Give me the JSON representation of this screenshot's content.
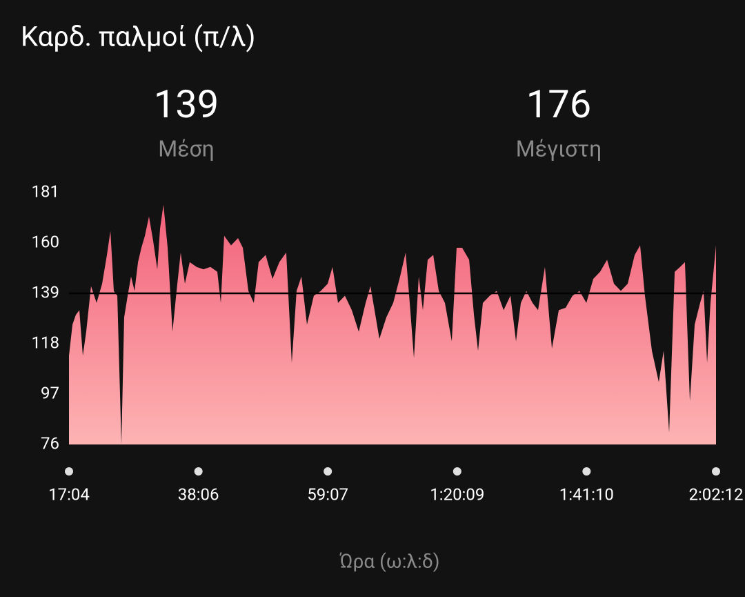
{
  "chart_data": {
    "type": "area",
    "title": "Καρδ. παλμοί (π/λ)",
    "stats": [
      {
        "value": 139,
        "label": "Μέση"
      },
      {
        "value": 176,
        "label": "Μέγιστη"
      }
    ],
    "average_line": 139,
    "x_label": "Ώρα (ω:λ:δ)",
    "color_top": "#f2617a",
    "color_bottom": "#fdb3b3",
    "xlim": [
      1024,
      7332
    ],
    "ylim": [
      76,
      181
    ],
    "yticks": [
      76,
      97,
      118,
      139,
      160,
      181
    ],
    "xticks": [
      {
        "value": 1024,
        "label": "17:04"
      },
      {
        "value": 2286,
        "label": "38:06"
      },
      {
        "value": 3547,
        "label": "59:07"
      },
      {
        "value": 4809,
        "label": "1:20:09"
      },
      {
        "value": 6070,
        "label": "1:41:10"
      },
      {
        "value": 7332,
        "label": "2:02:12"
      }
    ],
    "x": [
      1024,
      1058,
      1091,
      1125,
      1159,
      1192,
      1239,
      1293,
      1347,
      1394,
      1428,
      1461,
      1495,
      1535,
      1562,
      1596,
      1629,
      1663,
      1697,
      1730,
      1764,
      1804,
      1844,
      1885,
      1912,
      1945,
      1986,
      2033,
      2073,
      2113,
      2154,
      2201,
      2268,
      2335,
      2403,
      2470,
      2504,
      2537,
      2604,
      2672,
      2719,
      2773,
      2826,
      2873,
      2941,
      3008,
      3075,
      3142,
      3196,
      3243,
      3290,
      3344,
      3411,
      3479,
      3546,
      3593,
      3647,
      3714,
      3781,
      3849,
      3916,
      3963,
      4003,
      4050,
      4118,
      4185,
      4252,
      4306,
      4346,
      4387,
      4434,
      4474,
      4521,
      4575,
      4629,
      4689,
      4756,
      4803,
      4857,
      4925,
      4972,
      5012,
      5059,
      5126,
      5194,
      5261,
      5328,
      5382,
      5429,
      5483,
      5543,
      5597,
      5664,
      5732,
      5799,
      5866,
      5933,
      6001,
      6068,
      6135,
      6202,
      6270,
      6337,
      6404,
      6471,
      6539,
      6592,
      6639,
      6707,
      6774,
      6821,
      6875,
      6929,
      6982,
      7029,
      7077,
      7124,
      7177,
      7211,
      7245,
      7278,
      7332
    ],
    "values": [
      113,
      126,
      130,
      132,
      113,
      123,
      142,
      135,
      143,
      155,
      165,
      140,
      138,
      76,
      129,
      138,
      146,
      140,
      152,
      158,
      163,
      171,
      161,
      149,
      166,
      176,
      158,
      123,
      140,
      156,
      143,
      152,
      150,
      149,
      150,
      148,
      135,
      163,
      159,
      162,
      158,
      140,
      135,
      152,
      155,
      145,
      152,
      156,
      110,
      140,
      146,
      126,
      138,
      140,
      143,
      150,
      135,
      138,
      132,
      123,
      135,
      142,
      132,
      120,
      129,
      135,
      146,
      156,
      135,
      112,
      146,
      132,
      153,
      155,
      140,
      135,
      119,
      158,
      158,
      153,
      130,
      115,
      135,
      138,
      140,
      132,
      138,
      119,
      135,
      140,
      135,
      132,
      150,
      116,
      132,
      133,
      138,
      140,
      135,
      145,
      148,
      153,
      143,
      140,
      143,
      155,
      159,
      138,
      115,
      102,
      115,
      81,
      148,
      150,
      152,
      94,
      126,
      135,
      140,
      110,
      135,
      159
    ]
  }
}
